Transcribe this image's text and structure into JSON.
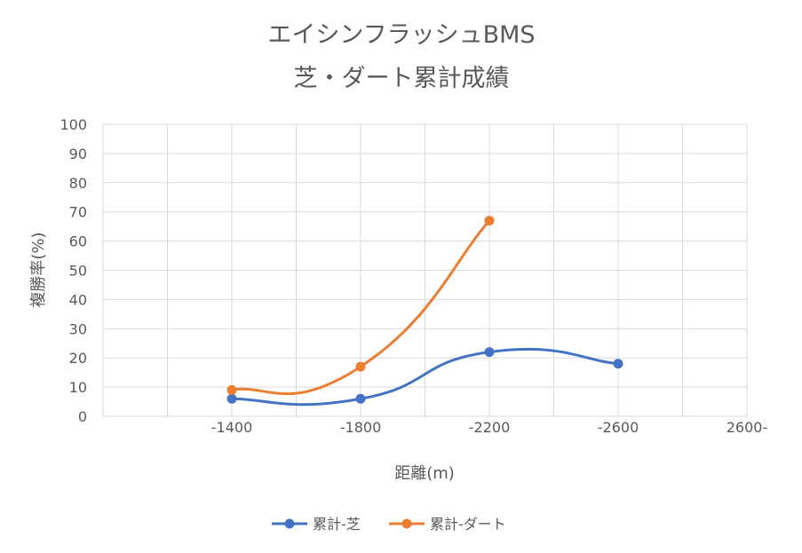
{
  "chart_data": {
    "type": "line",
    "title": "エイシンフラッシュBMS",
    "subtitle": "芝・ダート累計成績",
    "xlabel": "距離(m)",
    "ylabel": "複勝率(%)",
    "ylim": [
      0,
      100
    ],
    "y_ticks": [
      "0",
      "10",
      "20",
      "30",
      "40",
      "50",
      "60",
      "70",
      "80",
      "90",
      "100"
    ],
    "categories": [
      "-1400",
      "-1800",
      "-2200",
      "-2600",
      "2600-"
    ],
    "grid": true,
    "legend_position": "bottom",
    "series": [
      {
        "name": "累計-芝",
        "color": "#4472C4",
        "values": [
          6,
          6,
          22,
          18,
          null
        ]
      },
      {
        "name": "累計-ダート",
        "color": "#ED7D31",
        "values": [
          9,
          17,
          67,
          null,
          null
        ]
      }
    ]
  }
}
